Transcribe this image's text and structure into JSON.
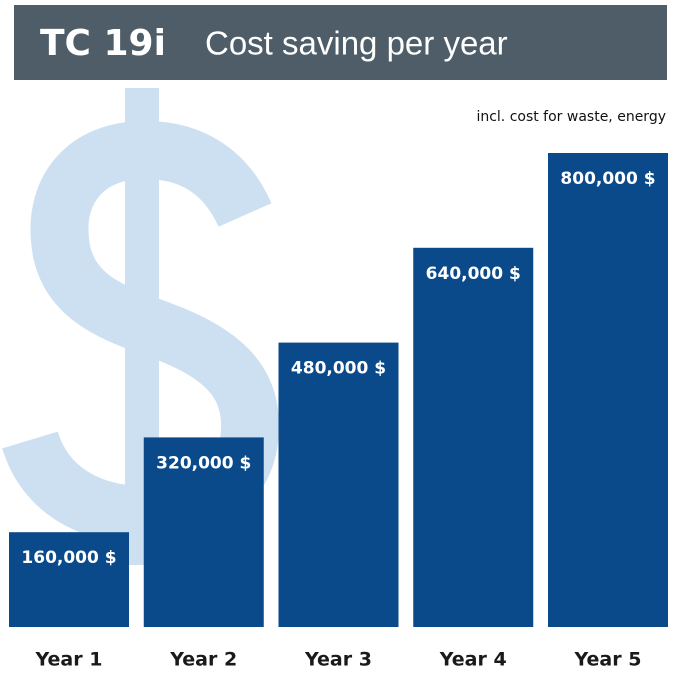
{
  "chart_data": {
    "type": "bar",
    "title": "TC 19i",
    "subtitle": "Cost saving per year",
    "note": "incl. cost for waste, energy",
    "categories": [
      "Year 1",
      "Year 2",
      "Year 3",
      "Year 4",
      "Year 5"
    ],
    "values": [
      160000,
      320000,
      480000,
      640000,
      800000
    ],
    "value_labels": [
      "160,000 $",
      "320,000 $",
      "480,000 $",
      "640,000 $",
      "800,000 $"
    ],
    "color": "#0a4a8a"
  }
}
